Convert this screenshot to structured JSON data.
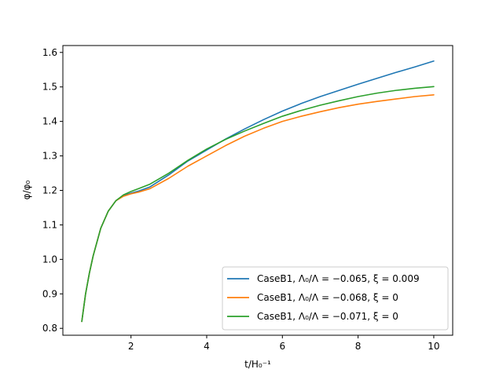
{
  "chart_data": {
    "type": "line",
    "xlabel": "t/H₀⁻¹",
    "ylabel": "φ/φ₀",
    "xlim": [
      0.2,
      10.5
    ],
    "ylim": [
      0.78,
      1.62
    ],
    "x_ticks": [
      2,
      4,
      6,
      8,
      10
    ],
    "y_ticks": [
      0.8,
      0.9,
      1.0,
      1.1,
      1.2,
      1.3,
      1.4,
      1.5,
      1.6
    ],
    "x_tick_labels": [
      "2",
      "4",
      "6",
      "8",
      "10"
    ],
    "y_tick_labels": [
      "0.8",
      "0.9",
      "1.0",
      "1.1",
      "1.2",
      "1.3",
      "1.4",
      "1.5",
      "1.6"
    ],
    "grid": false,
    "legend_position": "lower-right",
    "series": [
      {
        "name": "CaseB1, Λ₀/Λ = −0.065, ξ = 0.009",
        "color": "#1f77b4",
        "x": [
          0.7,
          0.8,
          0.9,
          1.0,
          1.2,
          1.4,
          1.6,
          1.8,
          2.0,
          2.2,
          2.5,
          3.0,
          3.5,
          4.0,
          4.5,
          5.0,
          5.5,
          6.0,
          6.5,
          7.0,
          7.5,
          8.0,
          8.5,
          9.0,
          9.5,
          10.0
        ],
        "y": [
          0.82,
          0.9,
          0.96,
          1.01,
          1.09,
          1.14,
          1.17,
          1.185,
          1.192,
          1.198,
          1.21,
          1.245,
          1.285,
          1.317,
          1.349,
          1.378,
          1.405,
          1.43,
          1.452,
          1.472,
          1.49,
          1.508,
          1.525,
          1.542,
          1.558,
          1.575
        ]
      },
      {
        "name": "CaseB1, Λ₀/Λ = −0.068, ξ = 0",
        "color": "#ff7f0e",
        "x": [
          0.7,
          0.8,
          0.9,
          1.0,
          1.2,
          1.4,
          1.6,
          1.8,
          2.0,
          2.2,
          2.5,
          3.0,
          3.5,
          4.0,
          4.5,
          5.0,
          5.5,
          6.0,
          6.5,
          7.0,
          7.5,
          8.0,
          8.5,
          9.0,
          9.5,
          10.0
        ],
        "y": [
          0.82,
          0.9,
          0.96,
          1.01,
          1.09,
          1.14,
          1.17,
          1.183,
          1.19,
          1.195,
          1.205,
          1.235,
          1.27,
          1.3,
          1.33,
          1.357,
          1.38,
          1.4,
          1.415,
          1.428,
          1.44,
          1.45,
          1.458,
          1.465,
          1.472,
          1.477
        ]
      },
      {
        "name": "CaseB1, Λ₀/Λ = −0.071, ξ = 0",
        "color": "#2ca02c",
        "x": [
          0.7,
          0.8,
          0.9,
          1.0,
          1.2,
          1.4,
          1.6,
          1.8,
          2.0,
          2.2,
          2.5,
          3.0,
          3.5,
          4.0,
          4.5,
          5.0,
          5.5,
          6.0,
          6.5,
          7.0,
          7.5,
          8.0,
          8.5,
          9.0,
          9.5,
          10.0
        ],
        "y": [
          0.82,
          0.9,
          0.96,
          1.01,
          1.09,
          1.14,
          1.17,
          1.187,
          1.197,
          1.205,
          1.218,
          1.25,
          1.287,
          1.32,
          1.348,
          1.372,
          1.394,
          1.415,
          1.432,
          1.447,
          1.46,
          1.472,
          1.482,
          1.49,
          1.496,
          1.501
        ]
      }
    ]
  }
}
